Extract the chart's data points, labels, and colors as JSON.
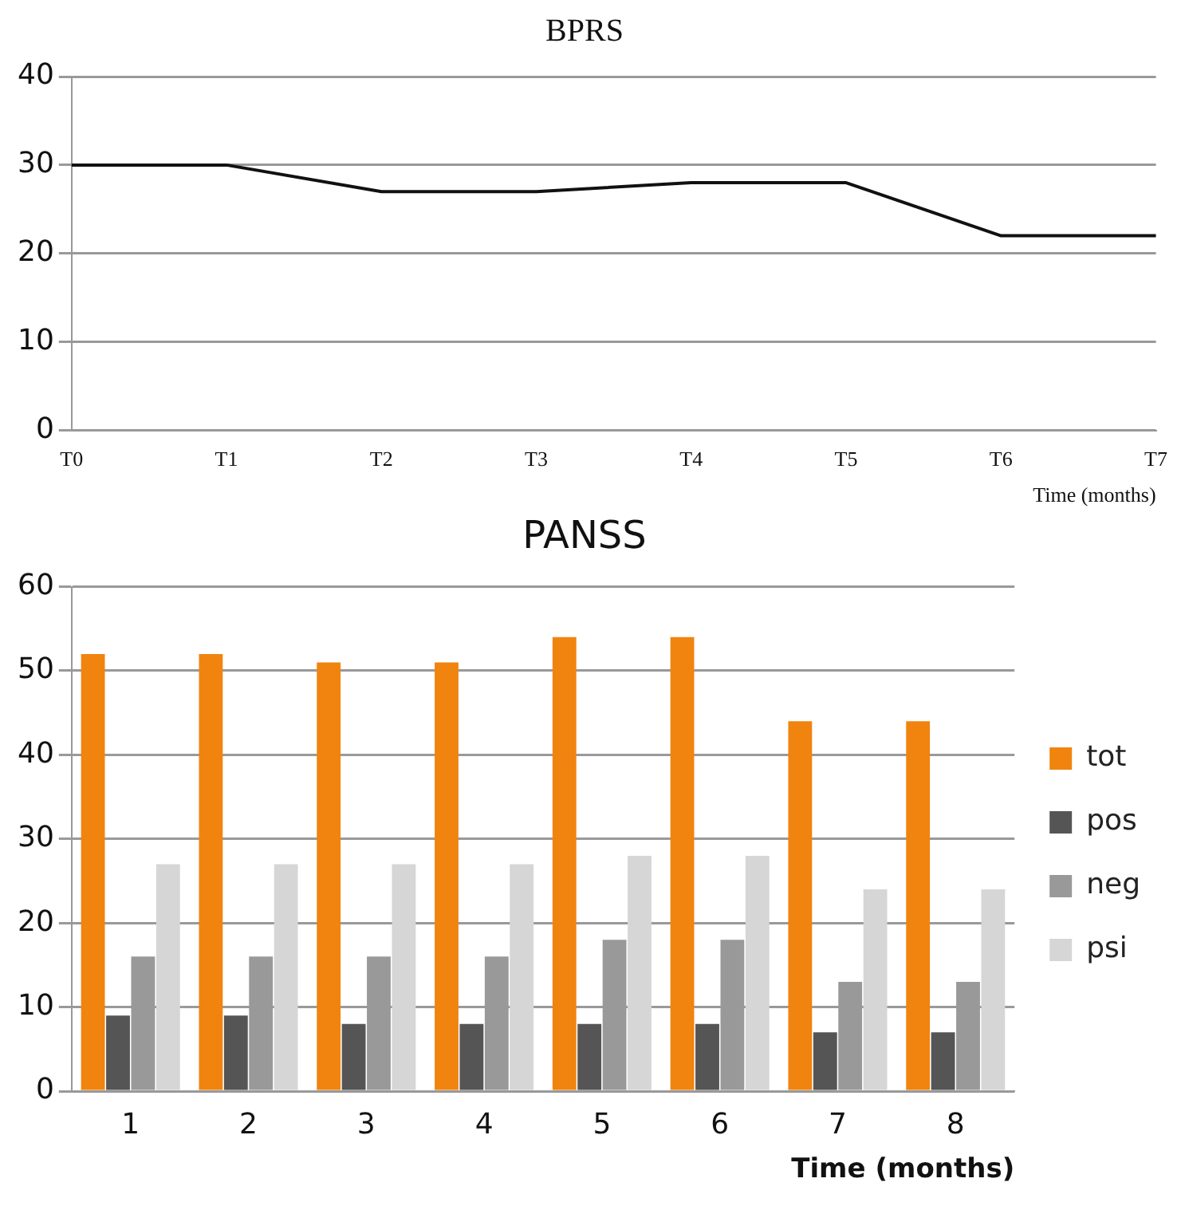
{
  "chart_data": [
    {
      "type": "line",
      "title": "BPRS",
      "categories": [
        "T0",
        "T1",
        "T2",
        "T3",
        "T4",
        "T5",
        "T6",
        "T7"
      ],
      "xlabel": "Time (months)",
      "series": [
        {
          "color": "#111111",
          "values": [
            30,
            30,
            27,
            27,
            28,
            28,
            22,
            22
          ]
        }
      ],
      "ylim": [
        0,
        40
      ],
      "yticks": [
        0,
        10,
        20,
        30,
        40
      ],
      "grid": "y",
      "legend": false,
      "marker": "none"
    },
    {
      "type": "bar",
      "title": "PANSS",
      "categories": [
        "1",
        "2",
        "3",
        "4",
        "5",
        "6",
        "7",
        "8"
      ],
      "xlabel": "Time (months)",
      "series": [
        {
          "name": "tot",
          "color": "#f0840f",
          "values": [
            52,
            52,
            51,
            51,
            54,
            54,
            44,
            44
          ]
        },
        {
          "name": "pos",
          "color": "#555555",
          "values": [
            9,
            9,
            8,
            8,
            8,
            8,
            7,
            7
          ]
        },
        {
          "name": "neg",
          "color": "#999999",
          "values": [
            16,
            16,
            16,
            16,
            18,
            18,
            13,
            13
          ]
        },
        {
          "name": "psi",
          "color": "#d6d6d6",
          "values": [
            27,
            27,
            27,
            27,
            28,
            28,
            24,
            24
          ]
        }
      ],
      "ylim": [
        0,
        60
      ],
      "yticks": [
        0,
        10,
        20,
        30,
        40,
        50,
        60
      ],
      "grid": "y",
      "legend": "right"
    }
  ]
}
